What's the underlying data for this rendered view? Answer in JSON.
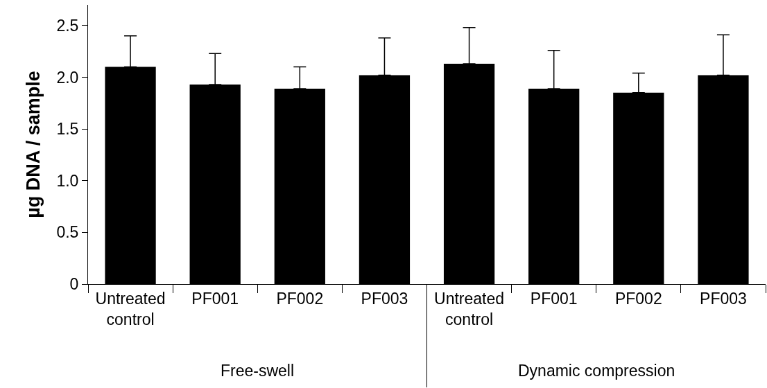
{
  "chart_data": {
    "type": "bar",
    "ylabel": "µg DNA / sample",
    "categories": [
      "Untreated\ncontrol",
      "PF001",
      "PF002",
      "PF003",
      "Untreated\ncontrol",
      "PF001",
      "PF002",
      "PF003"
    ],
    "values": [
      2.1,
      1.93,
      1.89,
      2.02,
      2.13,
      1.89,
      1.85,
      2.02
    ],
    "errors": [
      [
        2.1,
        2.4
      ],
      [
        1.93,
        2.23
      ],
      [
        1.89,
        2.1
      ],
      [
        2.02,
        2.38
      ],
      [
        2.13,
        2.48
      ],
      [
        1.89,
        2.26
      ],
      [
        1.85,
        2.04
      ],
      [
        2.02,
        2.41
      ]
    ],
    "color": "#000000",
    "ylim": [
      0,
      2.7
    ],
    "yticks": [
      0,
      {
        "value": 0.5,
        "label": "0.5"
      },
      {
        "value": 1,
        "label": "1.0"
      },
      {
        "value": 1.5,
        "label": "1.5"
      },
      {
        "value": 2,
        "label": "2.0"
      },
      {
        "value": 2.5,
        "label": "2.5"
      }
    ],
    "annotations": [
      "Free-swell",
      "Dynamic compression"
    ]
  }
}
